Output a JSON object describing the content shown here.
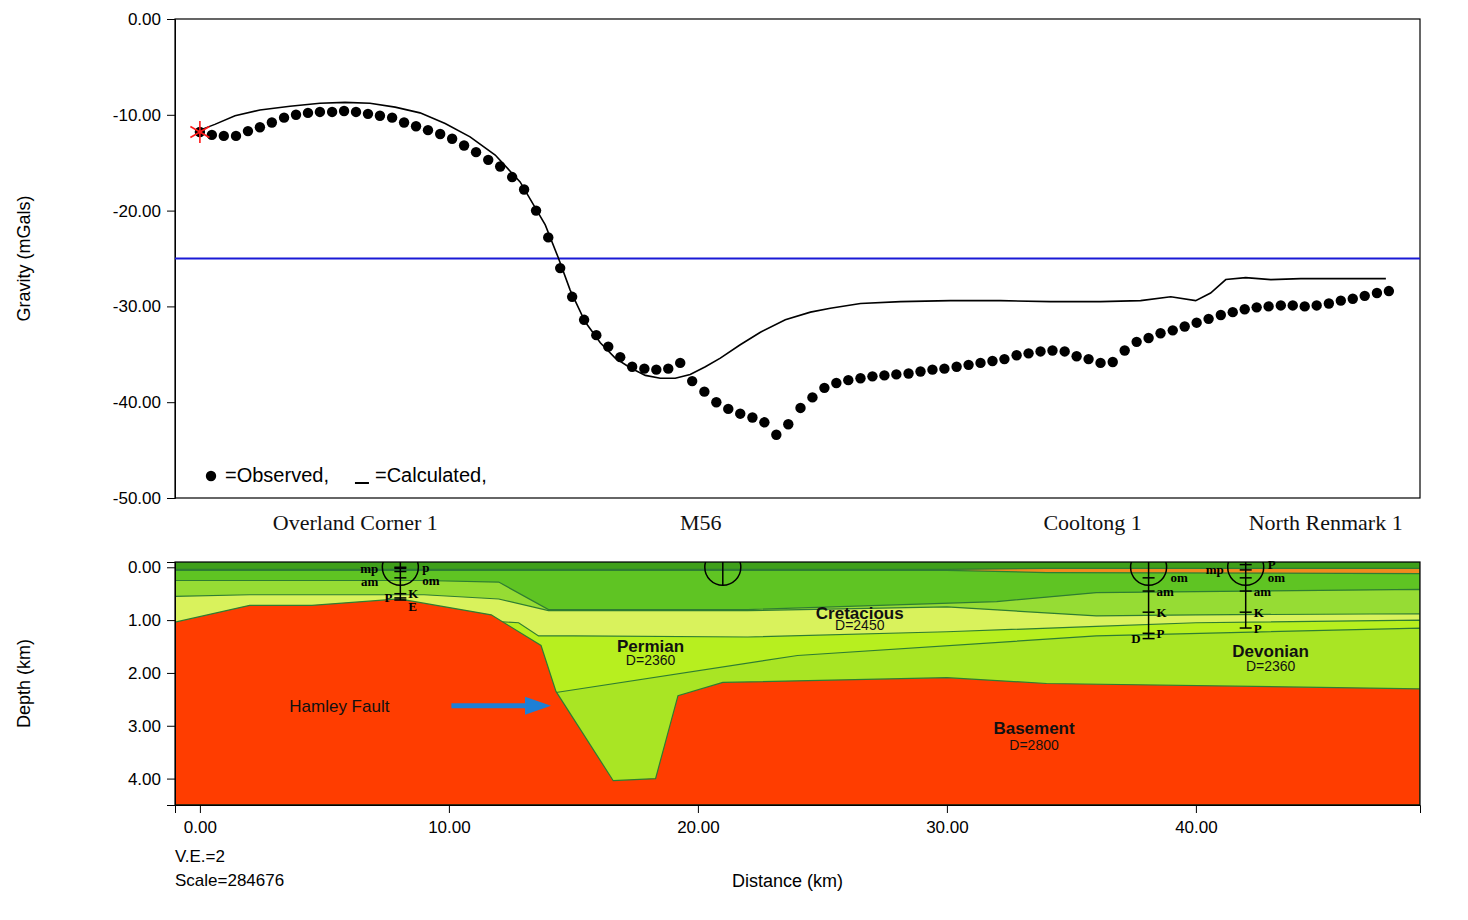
{
  "chart_data": [
    {
      "type": "line",
      "y_label": "Gravity (mGals)",
      "xlim": [
        -1,
        49
      ],
      "ylim": [
        -50,
        0
      ],
      "yticks": [
        {
          "value": -50,
          "label": "-50.00"
        },
        {
          "value": -40,
          "label": "-40.00"
        },
        {
          "value": -30,
          "label": "-30.00"
        },
        {
          "value": -20,
          "label": "-20.00"
        },
        {
          "value": -10,
          "label": "-10.00"
        },
        {
          "value": 0,
          "label": "0.00"
        }
      ],
      "tick_labels": "y",
      "grid": false,
      "legend": "lower left",
      "reference_line": {
        "y": -25,
        "color": "#1a1ad6"
      },
      "reference_point": {
        "x": 0,
        "y": -11.8,
        "color": "#ff1a1a",
        "marker": "asterisk"
      },
      "series": [
        {
          "name": "=Observed,",
          "type": "scatter",
          "marker": "circle",
          "color": "#000000",
          "x": [
            0,
            0.48,
            0.96,
            1.45,
            1.93,
            2.41,
            2.89,
            3.38,
            3.86,
            4.34,
            4.82,
            5.31,
            5.79,
            6.27,
            6.75,
            7.23,
            7.72,
            8.2,
            8.68,
            9.16,
            9.65,
            10.13,
            10.61,
            11.09,
            11.58,
            12.06,
            12.54,
            13.02,
            13.5,
            13.99,
            14.47,
            14.95,
            15.43,
            15.92,
            16.4,
            16.88,
            17.36,
            17.85,
            18.33,
            18.81,
            19.29,
            19.77,
            20.26,
            20.74,
            21.22,
            21.7,
            22.19,
            22.67,
            23.15,
            23.63,
            24.12,
            24.6,
            25.08,
            25.56,
            26.04,
            26.53,
            27.01,
            27.49,
            27.97,
            28.46,
            28.94,
            29.42,
            29.9,
            30.39,
            30.87,
            31.35,
            31.83,
            32.31,
            32.8,
            33.28,
            33.76,
            34.24,
            34.73,
            35.21,
            35.69,
            36.17,
            36.66,
            37.14,
            37.62,
            38.1,
            38.58,
            39.07,
            39.55,
            40.03,
            40.51,
            41,
            41.48,
            41.96,
            42.44,
            42.92,
            43.41,
            43.89,
            44.37,
            44.85,
            45.34,
            45.82,
            46.3,
            46.78,
            47.27,
            47.75
          ],
          "values": [
            -11.8,
            -12.1,
            -12.2,
            -12.2,
            -11.7,
            -11.3,
            -10.8,
            -10.3,
            -10,
            -9.8,
            -9.7,
            -9.7,
            -9.6,
            -9.7,
            -9.9,
            -10.1,
            -10.3,
            -10.8,
            -11.2,
            -11.6,
            -12,
            -12.5,
            -13.2,
            -13.9,
            -14.7,
            -15.4,
            -16.5,
            -17.8,
            -20,
            -22.8,
            -26,
            -29,
            -31.4,
            -33,
            -34.2,
            -35.3,
            -36.3,
            -36.5,
            -36.6,
            -36.5,
            -35.9,
            -37.8,
            -38.9,
            -40,
            -40.7,
            -41.2,
            -41.6,
            -42.1,
            -43.4,
            -42.3,
            -40.6,
            -39.5,
            -38.5,
            -38,
            -37.7,
            -37.5,
            -37.3,
            -37.2,
            -37.1,
            -37,
            -36.8,
            -36.6,
            -36.5,
            -36.3,
            -36.1,
            -35.9,
            -35.7,
            -35.5,
            -35.1,
            -34.9,
            -34.7,
            -34.6,
            -34.7,
            -35.2,
            -35.5,
            -35.9,
            -35.8,
            -34.6,
            -33.7,
            -33.3,
            -32.8,
            -32.5,
            -32.1,
            -31.7,
            -31.3,
            -30.9,
            -30.6,
            -30.3,
            -30.1,
            -30,
            -29.9,
            -29.9,
            -30,
            -29.9,
            -29.7,
            -29.4,
            -29.2,
            -28.9,
            -28.6,
            -28.4
          ]
        },
        {
          "name": "=Calculated,",
          "type": "line",
          "line_style": "solid",
          "color": "#000000",
          "x": [
            0,
            0.6,
            1.41,
            2.41,
            3.62,
            4.82,
            5.83,
            6.83,
            7.84,
            8.84,
            9.85,
            10.85,
            11.86,
            12.86,
            13.87,
            14.39,
            14.87,
            15.47,
            16.08,
            16.68,
            17.28,
            17.89,
            18.49,
            19.09,
            19.69,
            20.3,
            20.9,
            21.7,
            22.51,
            23.51,
            24.52,
            25.32,
            26.53,
            28.14,
            30.14,
            32.15,
            34.16,
            36.17,
            37.78,
            38.99,
            39.99,
            40.59,
            41.2,
            42,
            43.01,
            44.21,
            45.82,
            47.63
          ],
          "values": [
            -11.6,
            -11,
            -10.1,
            -9.5,
            -9.1,
            -8.8,
            -8.7,
            -8.8,
            -9.2,
            -9.8,
            -10.9,
            -12.3,
            -14.2,
            -17,
            -21.5,
            -24.9,
            -28.3,
            -31.6,
            -33.8,
            -35.4,
            -36.4,
            -37.2,
            -37.5,
            -37.5,
            -37.1,
            -36.3,
            -35.4,
            -34,
            -32.7,
            -31.4,
            -30.6,
            -30.2,
            -29.7,
            -29.5,
            -29.4,
            -29.4,
            -29.5,
            -29.5,
            -29.4,
            -29,
            -29.4,
            -28.6,
            -27.2,
            -27,
            -27.2,
            -27.1,
            -27.1,
            -27.1
          ]
        }
      ]
    },
    {
      "type": "cross_section",
      "x_label": "Distance (km)",
      "y_label": "Depth (km)",
      "xlim": [
        -1,
        49
      ],
      "ylim": [
        4.5,
        -0.1
      ],
      "xticks": [
        {
          "value": 0,
          "label": "0.00"
        },
        {
          "value": 10,
          "label": "10.00"
        },
        {
          "value": 20,
          "label": "20.00"
        },
        {
          "value": 30,
          "label": "30.00"
        },
        {
          "value": 40,
          "label": "40.00"
        }
      ],
      "yticks": [
        {
          "value": 0,
          "label": "0.00"
        },
        {
          "value": 1,
          "label": "1.00"
        },
        {
          "value": 2,
          "label": "2.00"
        },
        {
          "value": 3,
          "label": "3.00"
        },
        {
          "value": 4,
          "label": "4.00"
        }
      ],
      "layers": [
        {
          "color": "#3f9f1a",
          "x": [
            -1,
            49
          ],
          "top": [
            -0.1,
            -0.1
          ]
        },
        {
          "color": "#f28a1e",
          "x": [
            -1,
            30,
            34,
            49
          ],
          "top": [
            0.04,
            0.04,
            0.02,
            0.02
          ]
        },
        {
          "color": "#5fc423",
          "x": [
            -1,
            30,
            34,
            49
          ],
          "top": [
            0.06,
            0.06,
            0.1,
            0.12
          ]
        },
        {
          "color": "#96dc34",
          "x": [
            -1,
            2,
            9,
            12,
            14,
            22,
            32,
            36,
            49
          ],
          "top": [
            0.25,
            0.25,
            0.25,
            0.28,
            0.8,
            0.8,
            0.65,
            0.48,
            0.42
          ]
        },
        {
          "name": "Cretacious",
          "density_label": "D=2450",
          "color": "#d9f25c",
          "x": [
            -1,
            2,
            9,
            12,
            14,
            22,
            30,
            36,
            40,
            49
          ],
          "top": [
            0.55,
            0.52,
            0.52,
            0.6,
            0.82,
            0.82,
            0.75,
            0.92,
            0.9,
            0.88
          ]
        },
        {
          "name": "Permian",
          "density_label": "D=2360",
          "color": "#b7ef1f",
          "x": [
            -1,
            11,
            12.8,
            13.6,
            15,
            22,
            30,
            36,
            40,
            49
          ],
          "top": [
            1.2,
            1.0,
            1.05,
            1.3,
            1.3,
            1.32,
            1.22,
            1.12,
            1.05,
            1.0
          ]
        },
        {
          "name": "Devonian",
          "density_label": "D=2360",
          "color": "#a9e524",
          "x": [
            -1,
            14.3,
            24,
            36,
            49
          ],
          "top": [
            2.4,
            2.37,
            1.67,
            1.3,
            1.15
          ]
        },
        {
          "name": "Basement",
          "density_label": "D=2800",
          "color": "#ff3d00",
          "x": [
            -1,
            2,
            4.5,
            8,
            11.7,
            13.7,
            14.3,
            16.6,
            18.3,
            19.2,
            21,
            30,
            34,
            49
          ],
          "top": [
            1.04,
            0.72,
            0.72,
            0.6,
            0.9,
            1.48,
            2.35,
            4.04,
            4.0,
            2.43,
            2.18,
            2.09,
            2.2,
            2.3
          ]
        }
      ],
      "wells": [
        {
          "name": "Overland Corner 1",
          "x": 8.05,
          "total_depth": 0.62,
          "picks": [
            {
              "label": "p",
              "depth": 0
            },
            {
              "label": "mp",
              "depth": 0.02
            },
            {
              "label": "om",
              "depth": 0.08
            },
            {
              "label": "am",
              "depth": 0.2
            },
            {
              "label": "K",
              "depth": 0.5
            },
            {
              "label": "P",
              "depth": 0.58
            },
            {
              "label": "E",
              "depth": 0.62
            }
          ]
        },
        {
          "name": "M56",
          "x": 21.0,
          "total_depth": 0.35,
          "picks": []
        },
        {
          "name": "Cooltong 1",
          "x": 38.1,
          "total_depth": 1.35,
          "picks": [
            {
              "label": "om",
              "depth": 0.2
            },
            {
              "label": "am",
              "depth": 0.45
            },
            {
              "label": "K",
              "depth": 0.85
            },
            {
              "label": "P",
              "depth": 1.25
            },
            {
              "label": "D",
              "depth": 1.35
            }
          ]
        },
        {
          "name": "North Renmark 1",
          "x": 42.0,
          "total_depth": 1.15,
          "picks": [
            {
              "label": "P",
              "depth": -0.05
            },
            {
              "label": "mp",
              "depth": 0.05
            },
            {
              "label": "om",
              "depth": 0.2
            },
            {
              "label": "am",
              "depth": 0.45
            },
            {
              "label": "K",
              "depth": 0.85
            },
            {
              "label": "P",
              "depth": 1.15
            }
          ]
        }
      ],
      "annotations": [
        {
          "text": "Hamley Fault",
          "color": "#1e7fd6"
        },
        {
          "text": "V.E.=2"
        },
        {
          "text": "Scale=284676"
        }
      ]
    }
  ]
}
